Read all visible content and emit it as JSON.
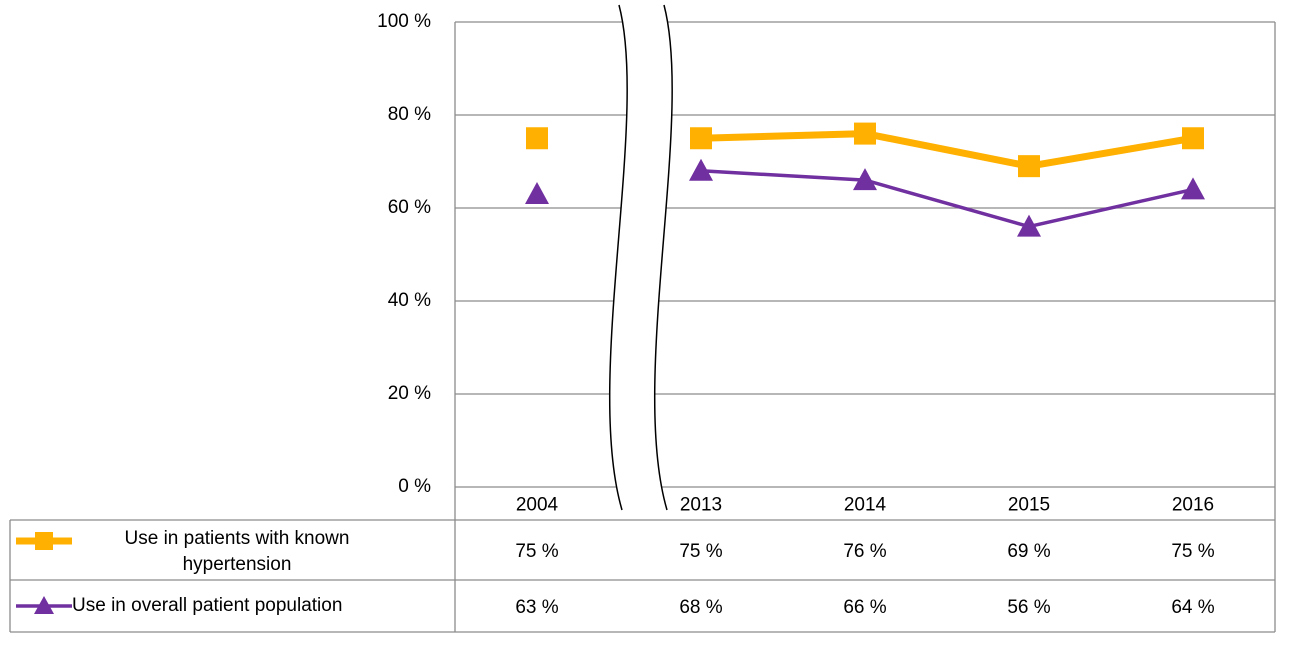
{
  "chart_data": {
    "type": "line",
    "categories": [
      "2004",
      "2013",
      "2014",
      "2015",
      "2016"
    ],
    "series": [
      {
        "name": "Use in patients with known hypertension",
        "color": "#FFB000",
        "marker": "square",
        "values": [
          75,
          75,
          76,
          69,
          75
        ],
        "value_labels": [
          "75 %",
          "75 %",
          "76 %",
          "69 %",
          "75 %"
        ]
      },
      {
        "name": "Use in overall patient population",
        "color": "#7030A0",
        "marker": "triangle",
        "values": [
          63,
          68,
          66,
          56,
          64
        ],
        "value_labels": [
          "63 %",
          "68 %",
          "66 %",
          "56 %",
          "64 %"
        ]
      }
    ],
    "ylim": [
      0,
      100
    ],
    "yticks": [
      {
        "value": 0,
        "label": "0 %"
      },
      {
        "value": 20,
        "label": "20 %"
      },
      {
        "value": 40,
        "label": "40 %"
      },
      {
        "value": 60,
        "label": "60 %"
      },
      {
        "value": 80,
        "label": "80 %"
      },
      {
        "value": 100,
        "label": "100 %"
      }
    ],
    "grid": true,
    "axis_break_after": 0,
    "data_table": true
  }
}
